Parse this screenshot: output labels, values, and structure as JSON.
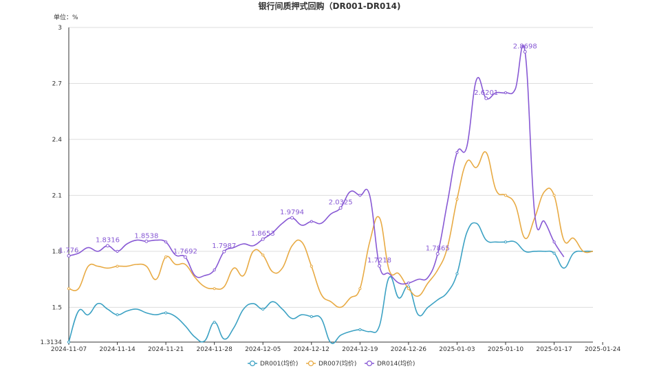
{
  "chart_data": {
    "type": "line",
    "title": "银行间质押式回购（DR001-DR014)",
    "unit_label": "单位：%",
    "ylim": [
      1.3134,
      3
    ],
    "y_ticks": [
      "1.3134",
      "1.5",
      "1.8",
      "2.1",
      "2.4",
      "2.7",
      "3"
    ],
    "x_tick_labels": [
      "2024-11-07",
      "2024-11-14",
      "2024-11-21",
      "2024-11-28",
      "2024-12-05",
      "2024-12-12",
      "2024-12-19",
      "2024-12-26",
      "2025-01-03",
      "2025-01-10",
      "2025-01-17",
      "2025-01-24"
    ],
    "grid": "horizontal",
    "legend_position": "bottom",
    "series": [
      {
        "name": "DR001(均价)",
        "color": "#3ba1c3",
        "points": [
          [
            0,
            1.3134
          ],
          [
            1,
            1.48
          ],
          [
            2,
            1.46
          ],
          [
            3,
            1.52
          ],
          [
            4,
            1.49
          ],
          [
            5,
            1.46
          ],
          [
            6,
            1.48
          ],
          [
            7,
            1.49
          ],
          [
            8,
            1.47
          ],
          [
            9,
            1.46
          ],
          [
            10,
            1.47
          ],
          [
            11,
            1.45
          ],
          [
            12,
            1.4
          ],
          [
            13,
            1.34
          ],
          [
            14,
            1.32
          ],
          [
            15,
            1.42
          ],
          [
            16,
            1.33
          ],
          [
            17,
            1.39
          ],
          [
            18,
            1.49
          ],
          [
            19,
            1.52
          ],
          [
            20,
            1.49
          ],
          [
            21,
            1.53
          ],
          [
            22,
            1.49
          ],
          [
            23,
            1.44
          ],
          [
            24,
            1.46
          ],
          [
            25,
            1.45
          ],
          [
            26,
            1.44
          ],
          [
            27,
            1.31
          ],
          [
            28,
            1.35
          ],
          [
            29,
            1.37
          ],
          [
            30,
            1.38
          ],
          [
            31,
            1.37
          ],
          [
            32,
            1.4
          ],
          [
            33,
            1.66
          ],
          [
            34,
            1.55
          ],
          [
            35,
            1.61
          ],
          [
            36,
            1.46
          ],
          [
            37,
            1.5
          ],
          [
            38,
            1.54
          ],
          [
            39,
            1.58
          ],
          [
            40,
            1.68
          ],
          [
            41,
            1.9
          ],
          [
            42,
            1.95
          ],
          [
            43,
            1.86
          ],
          [
            44,
            1.85
          ],
          [
            45,
            1.85
          ],
          [
            46,
            1.85
          ],
          [
            47,
            1.8
          ],
          [
            48,
            1.8
          ],
          [
            49,
            1.8
          ],
          [
            50,
            1.79
          ],
          [
            51,
            1.71
          ],
          [
            52,
            1.79
          ],
          [
            53,
            1.8
          ],
          [
            54,
            1.8
          ]
        ]
      },
      {
        "name": "DR007(均价)",
        "color": "#e8aa43",
        "points": [
          [
            0,
            1.6
          ],
          [
            1,
            1.6
          ],
          [
            2,
            1.72
          ],
          [
            3,
            1.72
          ],
          [
            4,
            1.71
          ],
          [
            5,
            1.72
          ],
          [
            6,
            1.72
          ],
          [
            7,
            1.73
          ],
          [
            8,
            1.72
          ],
          [
            9,
            1.65
          ],
          [
            10,
            1.77
          ],
          [
            11,
            1.73
          ],
          [
            12,
            1.73
          ],
          [
            13,
            1.66
          ],
          [
            14,
            1.61
          ],
          [
            15,
            1.6
          ],
          [
            16,
            1.61
          ],
          [
            17,
            1.71
          ],
          [
            18,
            1.67
          ],
          [
            19,
            1.8
          ],
          [
            20,
            1.78
          ],
          [
            21,
            1.69
          ],
          [
            22,
            1.71
          ],
          [
            23,
            1.83
          ],
          [
            24,
            1.85
          ],
          [
            25,
            1.72
          ],
          [
            26,
            1.57
          ],
          [
            27,
            1.53
          ],
          [
            28,
            1.5
          ],
          [
            29,
            1.55
          ],
          [
            30,
            1.6
          ],
          [
            31,
            1.85
          ],
          [
            32,
            1.98
          ],
          [
            33,
            1.7
          ],
          [
            34,
            1.68
          ],
          [
            35,
            1.6
          ],
          [
            36,
            1.56
          ],
          [
            37,
            1.63
          ],
          [
            38,
            1.7
          ],
          [
            39,
            1.82
          ],
          [
            40,
            2.08
          ],
          [
            41,
            2.28
          ],
          [
            42,
            2.25
          ],
          [
            43,
            2.33
          ],
          [
            44,
            2.13
          ],
          [
            45,
            2.1
          ],
          [
            46,
            2.05
          ],
          [
            47,
            1.87
          ],
          [
            48,
            1.98
          ],
          [
            49,
            2.12
          ],
          [
            50,
            2.1
          ],
          [
            51,
            1.86
          ],
          [
            52,
            1.87
          ],
          [
            53,
            1.8
          ],
          [
            54,
            1.8
          ]
        ]
      },
      {
        "name": "DR014(均价)",
        "color": "#8758d4",
        "points": [
          [
            0,
            1.776
          ],
          [
            1,
            1.79
          ],
          [
            2,
            1.82
          ],
          [
            3,
            1.8
          ],
          [
            4,
            1.83
          ],
          [
            5,
            1.8
          ],
          [
            6,
            1.84
          ],
          [
            7,
            1.86
          ],
          [
            8,
            1.8538
          ],
          [
            9,
            1.86
          ],
          [
            10,
            1.85
          ],
          [
            11,
            1.78
          ],
          [
            12,
            1.7692
          ],
          [
            13,
            1.67
          ],
          [
            14,
            1.67
          ],
          [
            15,
            1.7
          ],
          [
            16,
            1.7987
          ],
          [
            17,
            1.82
          ],
          [
            18,
            1.84
          ],
          [
            19,
            1.83
          ],
          [
            20,
            1.8653
          ],
          [
            21,
            1.9
          ],
          [
            22,
            1.95
          ],
          [
            23,
            1.9794
          ],
          [
            24,
            1.94
          ],
          [
            25,
            1.96
          ],
          [
            26,
            1.95
          ],
          [
            27,
            2.0
          ],
          [
            28,
            2.0325
          ],
          [
            29,
            2.12
          ],
          [
            30,
            2.1
          ],
          [
            31,
            2.1
          ],
          [
            32,
            1.7218
          ],
          [
            33,
            1.68
          ],
          [
            34,
            1.63
          ],
          [
            35,
            1.63
          ],
          [
            36,
            1.65
          ],
          [
            37,
            1.66
          ],
          [
            38,
            1.7865
          ],
          [
            39,
            2.06
          ],
          [
            40,
            2.33
          ],
          [
            41,
            2.36
          ],
          [
            42,
            2.72
          ],
          [
            43,
            2.6201
          ],
          [
            44,
            2.65
          ],
          [
            45,
            2.65
          ],
          [
            46,
            2.67
          ],
          [
            47,
            2.8698
          ],
          [
            48,
            2.0
          ],
          [
            49,
            1.96
          ],
          [
            50,
            1.85
          ],
          [
            51,
            1.77
          ]
        ]
      }
    ],
    "annotations": {
      "DR014(均价)": [
        {
          "i": 0,
          "label": "1.776"
        },
        {
          "i": 4,
          "label": "1.8316"
        },
        {
          "i": 8,
          "label": "1.8538"
        },
        {
          "i": 12,
          "label": "1.7692"
        },
        {
          "i": 16,
          "label": "1.7987"
        },
        {
          "i": 20,
          "label": "1.8653"
        },
        {
          "i": 23,
          "label": "1.9794"
        },
        {
          "i": 28,
          "label": "2.0325"
        },
        {
          "i": 32,
          "label": "1.7218"
        },
        {
          "i": 38,
          "label": "1.7865"
        },
        {
          "i": 43,
          "label": "2.6201"
        },
        {
          "i": 47,
          "label": "2.8698"
        }
      ]
    }
  }
}
